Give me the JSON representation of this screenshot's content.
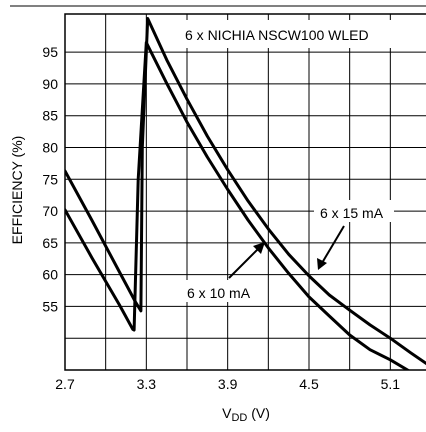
{
  "chart_data": {
    "type": "line",
    "title": "",
    "xlabel_main": "V",
    "xlabel_sub": "DD",
    "xlabel_unit": " (V)",
    "ylabel": "EFFICIENCY (%)",
    "xlim": [
      2.7,
      5.4
    ],
    "ylim": [
      45,
      101
    ],
    "x_ticks": [
      2.7,
      3.3,
      3.9,
      4.5,
      5.1
    ],
    "x_tick_labels": [
      "2.7",
      "3.3",
      "3.9",
      "4.5",
      "5.1"
    ],
    "y_ticks": [
      55,
      60,
      65,
      70,
      75,
      80,
      85,
      90,
      95
    ],
    "y_tick_labels": [
      "55",
      "60",
      "65",
      "70",
      "75",
      "80",
      "85",
      "90",
      "95"
    ],
    "x_gridlines": [
      2.7,
      3.0,
      3.3,
      3.6,
      3.9,
      4.2,
      4.5,
      4.8,
      5.1,
      5.4
    ],
    "y_gridlines": [
      50,
      55,
      60,
      65,
      70,
      75,
      80,
      85,
      90,
      95
    ],
    "grid": true,
    "legend_box": "6 x NICHIA NSCW100 WLED",
    "annotations": [
      {
        "id": "label-15ma",
        "text": "6 x 15 mA"
      },
      {
        "id": "label-10ma",
        "text": "6 x 10 mA"
      }
    ],
    "series": [
      {
        "name": "6 x 15 mA",
        "x": [
          2.7,
          2.9,
          3.1,
          3.22,
          3.26,
          3.27,
          3.31,
          3.45,
          3.6,
          3.75,
          3.9,
          4.05,
          4.2,
          4.35,
          4.5,
          4.65,
          4.8,
          4.95,
          5.1,
          5.25,
          5.4
        ],
        "y": [
          76.3,
          68.5,
          60.5,
          55.7,
          54.3,
          80,
          100.3,
          93.8,
          87.6,
          81.8,
          76.5,
          71.6,
          67.2,
          63.2,
          59.8,
          56.8,
          54.4,
          52.1,
          50,
          47.7,
          45.5
        ]
      },
      {
        "name": "6 x 10 mA",
        "x": [
          2.7,
          2.9,
          3.1,
          3.2,
          3.21,
          3.24,
          3.3,
          3.45,
          3.6,
          3.75,
          3.9,
          4.05,
          4.2,
          4.35,
          4.5,
          4.65,
          4.8,
          4.95,
          5.1,
          5.25,
          5.4
        ],
        "y": [
          70.2,
          62.6,
          55.3,
          51.4,
          51.3,
          75,
          96.5,
          90.1,
          84,
          78.5,
          73.4,
          68.6,
          64.2,
          60.2,
          56.5,
          53.5,
          50.5,
          48.2,
          46.6,
          44.7,
          43.2
        ]
      }
    ]
  },
  "colors": {
    "line": "#000000",
    "grid": "#000000",
    "background": "#ffffff"
  }
}
